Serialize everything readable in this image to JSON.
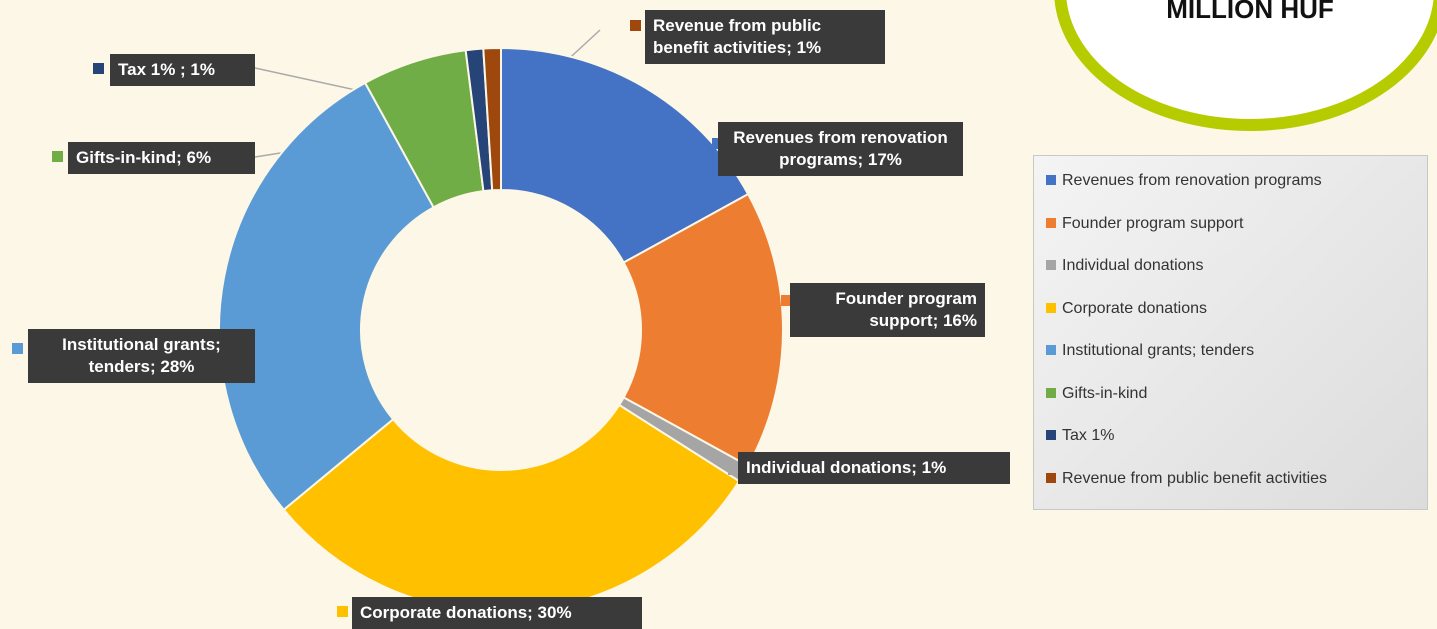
{
  "chart_data": {
    "type": "donut",
    "annotation": "MILLION HUF",
    "categories": [
      "Revenues from renovation programs",
      "Founder program support",
      "Individual donations",
      "Corporate donations",
      "Institutional grants; tenders",
      "Gifts-in-kind",
      "Tax 1%",
      "Revenue from public benefit activities"
    ],
    "values": [
      17,
      16,
      1,
      30,
      28,
      6,
      1,
      1
    ],
    "value_labels": [
      "Revenues from renovation programs; 17%",
      "Founder program support; 16%",
      "Individual donations; 1%",
      "Corporate donations; 30%",
      "Institutional grants; tenders; 28%",
      "Gifts-in-kind; 6%",
      "Tax 1% ; 1%",
      "Revenue from public benefit activities; 1%"
    ],
    "colors": [
      "#4472c4",
      "#ed7d31",
      "#a5a5a5",
      "#ffc000",
      "#5b9bd5",
      "#70ad47",
      "#264478",
      "#9e480e"
    ],
    "legend": "right"
  }
}
